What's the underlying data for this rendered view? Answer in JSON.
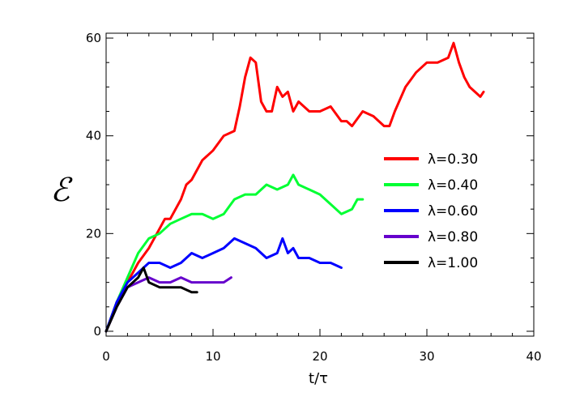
{
  "chart_data": {
    "type": "line",
    "xlabel": "t/τ",
    "ylabel": "ℰ",
    "xlim": [
      0,
      40
    ],
    "ylim": [
      -1,
      61
    ],
    "xticks": [
      0,
      10,
      20,
      30,
      40
    ],
    "yticks": [
      0,
      20,
      40,
      60
    ],
    "grid": false,
    "legend_position": "right",
    "series": [
      {
        "name": "λ=0.30",
        "color": "#ff0000",
        "x": [
          0,
          1,
          2,
          3,
          4,
          5,
          5.5,
          6,
          7,
          7.5,
          8,
          9,
          10,
          11,
          12,
          12.5,
          13,
          13.5,
          14,
          14.5,
          15,
          15.5,
          16,
          16.5,
          17,
          17.5,
          18,
          19,
          20,
          21,
          22,
          22.5,
          23,
          24,
          25,
          26,
          26.5,
          27,
          28,
          29,
          30,
          31,
          32,
          32.5,
          33,
          33.5,
          34,
          35,
          35.3
        ],
        "y": [
          0,
          6,
          10,
          14,
          17,
          21,
          23,
          23,
          27,
          30,
          31,
          35,
          37,
          40,
          41,
          46,
          52,
          56,
          55,
          47,
          45,
          45,
          50,
          48,
          49,
          45,
          47,
          45,
          45,
          46,
          43,
          43,
          42,
          45,
          44,
          42,
          42,
          45,
          50,
          53,
          55,
          55,
          56,
          59,
          55,
          52,
          50,
          48,
          49
        ]
      },
      {
        "name": "λ=0.40",
        "color": "#00ff33",
        "x": [
          0,
          1,
          2,
          3,
          4,
          5,
          6,
          7,
          8,
          9,
          10,
          11,
          12,
          13,
          14,
          15,
          16,
          17,
          17.5,
          18,
          19,
          20,
          21,
          22,
          23,
          23.5,
          24
        ],
        "y": [
          0,
          6,
          11,
          16,
          19,
          20,
          22,
          23,
          24,
          24,
          23,
          24,
          27,
          28,
          28,
          30,
          29,
          30,
          32,
          30,
          29,
          28,
          26,
          24,
          25,
          27,
          27
        ]
      },
      {
        "name": "λ=0.60",
        "color": "#0000ff",
        "x": [
          0,
          1,
          2,
          3,
          4,
          5,
          6,
          7,
          8,
          9,
          10,
          11,
          12,
          13,
          14,
          15,
          16,
          16.5,
          17,
          17.5,
          18,
          19,
          20,
          21,
          22
        ],
        "y": [
          0,
          6,
          10,
          12,
          14,
          14,
          13,
          14,
          16,
          15,
          16,
          17,
          19,
          18,
          17,
          15,
          16,
          19,
          16,
          17,
          15,
          15,
          14,
          14,
          13
        ]
      },
      {
        "name": "λ=0.80",
        "color": "#6600cc",
        "x": [
          0,
          1,
          2,
          3,
          4,
          5,
          6,
          7,
          8,
          9,
          10,
          11,
          11.7
        ],
        "y": [
          0,
          5,
          9,
          10,
          11,
          10,
          10,
          11,
          10,
          10,
          10,
          10,
          11
        ]
      },
      {
        "name": "λ=1.00",
        "color": "#000000",
        "x": [
          0,
          1,
          2,
          3,
          3.5,
          4,
          5,
          6,
          7,
          8,
          8.5
        ],
        "y": [
          0,
          5,
          9,
          11,
          13,
          10,
          9,
          9,
          9,
          8,
          8
        ]
      }
    ]
  }
}
